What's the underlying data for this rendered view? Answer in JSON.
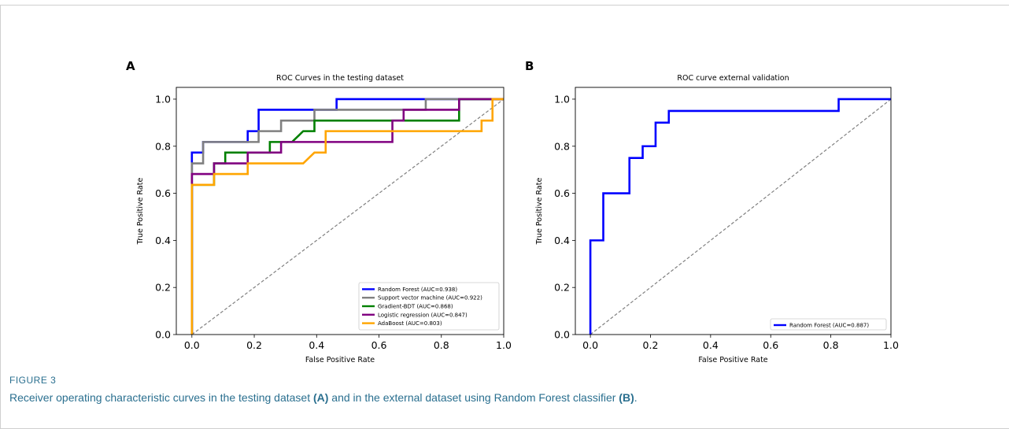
{
  "figure": {
    "label": "FIGURE 3",
    "caption": {
      "t1": "Receiver operating characteristic curves in the testing dataset ",
      "b1": "(A)",
      "t2": " and in the external dataset using Random Forest classifier ",
      "b2": "(B)",
      "t3": "."
    },
    "colors": {
      "caption": "#2a6f8f"
    }
  },
  "chart_data": [
    {
      "type": "line",
      "panel_label": "A",
      "title": "ROC Curves in the testing dataset",
      "xlabel": "False Positive Rate",
      "ylabel": "True Positive Rate",
      "xlim": [
        -0.05,
        1.0
      ],
      "ylim": [
        0.0,
        1.05
      ],
      "xticks": [
        "0.0",
        "0.2",
        "0.4",
        "0.6",
        "0.8",
        "1.0"
      ],
      "yticks": [
        "0.0",
        "0.2",
        "0.4",
        "0.6",
        "0.8",
        "1.0"
      ],
      "grid": false,
      "legend_position": "bottom-right",
      "diagonal": {
        "color": "#808080",
        "style": "dashed"
      },
      "series": [
        {
          "name": "Random Forest (AUC=0.938)",
          "color": "#0000ff",
          "x": [
            0,
            0,
            0.036,
            0.036,
            0.179,
            0.179,
            0.214,
            0.214,
            0.464,
            0.464,
            1.0
          ],
          "y": [
            0,
            0.773,
            0.773,
            0.818,
            0.818,
            0.864,
            0.864,
            0.955,
            0.955,
            1.0,
            1.0
          ]
        },
        {
          "name": "Support vector machine (AUC=0.922)",
          "color": "#808080",
          "x": [
            0,
            0,
            0.036,
            0.036,
            0.214,
            0.214,
            0.286,
            0.286,
            0.393,
            0.393,
            0.75,
            0.75,
            1.0
          ],
          "y": [
            0,
            0.727,
            0.727,
            0.818,
            0.818,
            0.864,
            0.864,
            0.909,
            0.909,
            0.955,
            0.955,
            1.0,
            1.0
          ]
        },
        {
          "name": "Gradient-BDT (AUC=0.868)",
          "color": "#008000",
          "x": [
            0,
            0,
            0.071,
            0.071,
            0.107,
            0.107,
            0.25,
            0.25,
            0.321,
            0.357,
            0.357,
            0.393,
            0.393,
            0.857,
            0.857,
            1.0
          ],
          "y": [
            0,
            0.636,
            0.636,
            0.727,
            0.727,
            0.773,
            0.773,
            0.818,
            0.818,
            0.864,
            0.864,
            0.864,
            0.909,
            0.909,
            1.0,
            1.0
          ]
        },
        {
          "name": "Logistic regression (AUC=0.847)",
          "color": "#800080",
          "x": [
            0,
            0,
            0.071,
            0.071,
            0.179,
            0.179,
            0.286,
            0.286,
            0.643,
            0.643,
            0.679,
            0.679,
            0.857,
            0.857,
            1.0
          ],
          "y": [
            0,
            0.682,
            0.682,
            0.727,
            0.727,
            0.773,
            0.773,
            0.818,
            0.818,
            0.909,
            0.909,
            0.955,
            0.955,
            1.0,
            1.0
          ]
        },
        {
          "name": "AdaBoost (AUC=0.803)",
          "color": "#ffa500",
          "x": [
            0,
            0,
            0.071,
            0.071,
            0.179,
            0.179,
            0.357,
            0.393,
            0.393,
            0.429,
            0.429,
            0.929,
            0.929,
            0.964,
            0.964,
            1.0
          ],
          "y": [
            0,
            0.636,
            0.636,
            0.682,
            0.682,
            0.727,
            0.727,
            0.773,
            0.773,
            0.773,
            0.864,
            0.864,
            0.909,
            0.909,
            1.0,
            1.0
          ]
        }
      ]
    },
    {
      "type": "line",
      "panel_label": "B",
      "title": "ROC curve external validation",
      "xlabel": "False Positive Rate",
      "ylabel": "True Positive Rate",
      "xlim": [
        -0.05,
        1.0
      ],
      "ylim": [
        0.0,
        1.05
      ],
      "xticks": [
        "0.0",
        "0.2",
        "0.4",
        "0.6",
        "0.8",
        "1.0"
      ],
      "yticks": [
        "0.0",
        "0.2",
        "0.4",
        "0.6",
        "0.8",
        "1.0"
      ],
      "grid": false,
      "legend_position": "bottom-right",
      "diagonal": {
        "color": "#808080",
        "style": "dashed"
      },
      "series": [
        {
          "name": "Random Forest (AUC=0.887)",
          "color": "#0000ff",
          "x": [
            0,
            0,
            0.043,
            0.043,
            0.13,
            0.13,
            0.174,
            0.174,
            0.217,
            0.217,
            0.261,
            0.261,
            0.826,
            0.826,
            1.0
          ],
          "y": [
            0,
            0.4,
            0.4,
            0.6,
            0.6,
            0.75,
            0.75,
            0.8,
            0.8,
            0.9,
            0.9,
            0.95,
            0.95,
            1.0,
            1.0
          ]
        }
      ]
    }
  ]
}
